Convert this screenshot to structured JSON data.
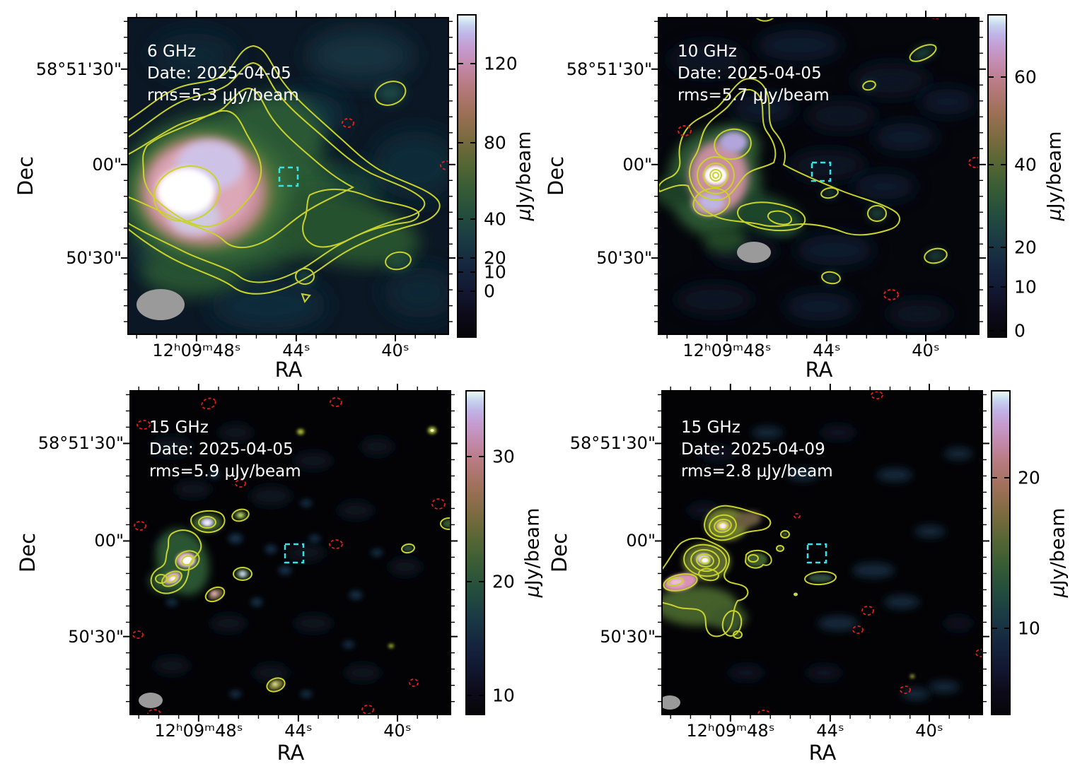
{
  "figure": {
    "background": "#ffffff"
  },
  "colors": {
    "positive_contour": "#c9d32b",
    "negative_contour": "#e41d1a",
    "target_marker": "#35e4e8",
    "beam_ellipse": "#9a9a9a",
    "panel_text": "#ffffff"
  },
  "axis": {
    "x_label": "RA",
    "y_label": "Dec",
    "x_ticks": [
      {
        "label": "12ʰ09ᵐ48ˢ",
        "pos": 0.215
      },
      {
        "label": "44ˢ",
        "pos": 0.525
      },
      {
        "label": "40ˢ",
        "pos": 0.833
      }
    ],
    "x_minor": [
      0.029,
      0.091,
      0.153,
      0.277,
      0.339,
      0.401,
      0.463,
      0.587,
      0.649,
      0.711,
      0.773,
      0.895,
      0.957
    ],
    "y_ticks": [
      {
        "label": "58°51'30\"",
        "pos": 0.164
      },
      {
        "label": "00\"",
        "pos": 0.464
      },
      {
        "label": "50'30\"",
        "pos": 0.758
      }
    ],
    "y_minor": [
      0.014,
      0.064,
      0.114,
      0.214,
      0.264,
      0.314,
      0.364,
      0.414,
      0.514,
      0.564,
      0.614,
      0.664,
      0.714,
      0.808,
      0.858,
      0.908,
      0.958
    ]
  },
  "panels": [
    {
      "freq": "6 GHz",
      "date": "Date: 2025-04-05",
      "rms": "rms=5.3 μJy/beam",
      "colorbar": {
        "label": "μJy/beam",
        "ticks": [
          {
            "v": "120",
            "pos": 0.149
          },
          {
            "v": "80",
            "pos": 0.393
          },
          {
            "v": "40",
            "pos": 0.629
          },
          {
            "v": "20",
            "pos": 0.749
          },
          {
            "v": "10",
            "pos": 0.793
          },
          {
            "v": "0",
            "pos": 0.851
          }
        ]
      }
    },
    {
      "freq": "10 GHz",
      "date": "Date: 2025-04-05",
      "rms": "rms=5.7 μJy/beam",
      "colorbar": {
        "label": "μJy/beam",
        "ticks": [
          {
            "v": "60",
            "pos": 0.189
          },
          {
            "v": "40",
            "pos": 0.46
          },
          {
            "v": "20",
            "pos": 0.716
          },
          {
            "v": "10",
            "pos": 0.838
          },
          {
            "v": "0",
            "pos": 0.973
          }
        ]
      }
    },
    {
      "freq": "15 GHz",
      "date": "Date: 2025-04-05",
      "rms": "rms=5.9 μJy/beam",
      "colorbar": {
        "label": "μJy/beam",
        "ticks": [
          {
            "v": "30",
            "pos": 0.199
          },
          {
            "v": "20",
            "pos": 0.584
          },
          {
            "v": "10",
            "pos": 0.934
          }
        ]
      }
    },
    {
      "freq": "15 GHz",
      "date": "Date: 2025-04-09",
      "rms": "rms=2.8 μJy/beam",
      "colorbar": {
        "label": "μJy/beam",
        "ticks": [
          {
            "v": "20",
            "pos": 0.266
          },
          {
            "v": "10",
            "pos": 0.728
          }
        ]
      }
    }
  ],
  "chart_data": [
    {
      "type": "heatmap",
      "title": "6 GHz",
      "date": "2025-04-05",
      "rms_uJy_per_beam": 5.3,
      "colorbar_label": "μJy/beam",
      "colorbar_ticks_uJy": [
        0,
        10,
        20,
        40,
        80,
        120
      ],
      "x": {
        "label": "RA",
        "ticks": [
          "12h09m48s",
          "44s",
          "40s"
        ]
      },
      "y": {
        "label": "Dec",
        "ticks": [
          "58°51'30\"",
          "00\"",
          "50'30\""
        ]
      },
      "overlays": [
        "positive contours (yellow)",
        "negative contours (red dashed)",
        "target box (cyan dashed)",
        "beam ellipse (gray)"
      ],
      "description": "Bright extended radio source left of center with nested contours and eastern extension"
    },
    {
      "type": "heatmap",
      "title": "10 GHz",
      "date": "2025-04-05",
      "rms_uJy_per_beam": 5.7,
      "colorbar_label": "μJy/beam",
      "colorbar_ticks_uJy": [
        0,
        10,
        20,
        40,
        60
      ],
      "x": {
        "label": "RA",
        "ticks": [
          "12h09m48s",
          "44s",
          "40s"
        ]
      },
      "y": {
        "label": "Dec",
        "ticks": [
          "58°51'30\"",
          "00\"",
          "50'30\""
        ]
      },
      "overlays": [
        "positive contours (yellow)",
        "negative contours (red dashed)",
        "target box (cyan dashed)",
        "beam ellipse (gray)"
      ],
      "description": "Compact bright core with surrounding emission left of center; scattered low-level contours"
    },
    {
      "type": "heatmap",
      "title": "15 GHz",
      "date": "2025-04-05",
      "rms_uJy_per_beam": 5.9,
      "colorbar_label": "μJy/beam",
      "colorbar_ticks_uJy": [
        10,
        20,
        30
      ],
      "x": {
        "label": "RA",
        "ticks": [
          "12h09m48s",
          "44s",
          "40s"
        ]
      },
      "y": {
        "label": "Dec",
        "ticks": [
          "58°51'30\"",
          "00\"",
          "50'30\""
        ]
      },
      "overlays": [
        "positive contours (yellow)",
        "negative contours (red dashed)",
        "target box (cyan dashed)",
        "beam ellipse (gray)"
      ],
      "description": "Cluster of compact knots left of center on mostly empty field"
    },
    {
      "type": "heatmap",
      "title": "15 GHz",
      "date": "2025-04-09",
      "rms_uJy_per_beam": 2.8,
      "colorbar_label": "μJy/beam",
      "colorbar_ticks_uJy": [
        10,
        20
      ],
      "x": {
        "label": "RA",
        "ticks": [
          "12h09m48s",
          "44s",
          "40s"
        ]
      },
      "y": {
        "label": "Dec",
        "ticks": [
          "58°51'30\"",
          "00\"",
          "50'30\""
        ]
      },
      "overlays": [
        "positive contours (yellow)",
        "negative contours (red dashed)",
        "target box (cyan dashed)",
        "beam ellipse (gray)"
      ],
      "description": "Two bright compact cores with ringed contours plus extended southwestern emission"
    }
  ]
}
